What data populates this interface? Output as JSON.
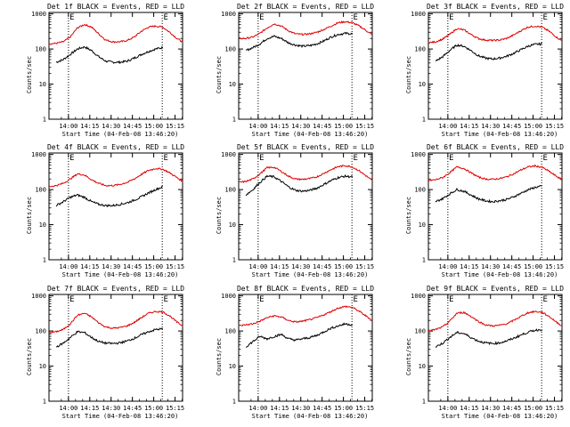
{
  "colors": {
    "events": "#000000",
    "lld": "#e00000",
    "axis": "#000000",
    "background": "#ffffff"
  },
  "chart_data": [
    {
      "type": "line",
      "title": "Det 1f BLACK = Events, RED = LLD",
      "xlabel": "Start Time (04-Feb-08 13:46:20)",
      "ylabel": "Counts/sec",
      "scale": "log",
      "ylim": [
        1,
        1100
      ],
      "xlim_minutes": [
        0,
        94
      ],
      "y_tick_labels": [
        "1",
        "10",
        "100",
        "1000"
      ],
      "x_tick_labels": [
        "14:00",
        "14:15",
        "14:30",
        "14:45",
        "15:00",
        "15:15"
      ],
      "x_tick_minutes": [
        13.7,
        28.7,
        43.7,
        58.7,
        73.7,
        88.7
      ],
      "vlines_minutes": [
        13.7,
        79.7
      ],
      "edge_labels": [
        "E",
        "E"
      ],
      "x_minutes": [
        0,
        5,
        10,
        15,
        20,
        25,
        30,
        35,
        40,
        45,
        50,
        55,
        60,
        65,
        70,
        75,
        80,
        85,
        90,
        94
      ],
      "series": [
        {
          "name": "Events",
          "color": "black",
          "start": 5,
          "end": 80,
          "values": [
            40,
            42,
            50,
            70,
            100,
            115,
            90,
            60,
            45,
            42,
            42,
            45,
            55,
            70,
            85,
            100,
            110,
            120,
            115,
            110
          ]
        },
        {
          "name": "LLD",
          "color": "red",
          "start": 0,
          "end": 94,
          "values": [
            140,
            145,
            160,
            220,
            400,
            500,
            420,
            270,
            180,
            160,
            160,
            175,
            220,
            320,
            420,
            450,
            420,
            300,
            200,
            160
          ]
        }
      ]
    },
    {
      "type": "line",
      "title": "Det 2f BLACK = Events, RED = LLD",
      "xlabel": "Start Time (04-Feb-08 13:46:20)",
      "ylabel": "Counts/sec",
      "scale": "log",
      "ylim": [
        1,
        1100
      ],
      "xlim_minutes": [
        0,
        94
      ],
      "y_tick_labels": [
        "1",
        "10",
        "100",
        "1000"
      ],
      "x_tick_labels": [
        "14:00",
        "14:15",
        "14:30",
        "14:45",
        "15:00",
        "15:15"
      ],
      "x_tick_minutes": [
        13.7,
        28.7,
        43.7,
        58.7,
        73.7,
        88.7
      ],
      "vlines_minutes": [
        13.7,
        79.7
      ],
      "edge_labels": [
        "E",
        "E"
      ],
      "x_minutes": [
        0,
        5,
        10,
        15,
        20,
        25,
        30,
        35,
        40,
        45,
        50,
        55,
        60,
        65,
        70,
        75,
        80,
        85,
        90,
        94
      ],
      "series": [
        {
          "name": "Events",
          "color": "black",
          "start": 5,
          "end": 80,
          "values": [
            80,
            90,
            110,
            140,
            200,
            230,
            200,
            150,
            130,
            120,
            125,
            140,
            170,
            220,
            260,
            280,
            270,
            250,
            220,
            200
          ]
        },
        {
          "name": "LLD",
          "color": "red",
          "start": 0,
          "end": 94,
          "values": [
            200,
            200,
            220,
            280,
            400,
            520,
            450,
            330,
            270,
            260,
            270,
            300,
            360,
            450,
            560,
            600,
            560,
            450,
            330,
            250
          ]
        }
      ]
    },
    {
      "type": "line",
      "title": "Det 3f BLACK = Events, RED = LLD",
      "xlabel": "Start Time (04-Feb-08 13:46:20)",
      "ylabel": "Counts/sec",
      "scale": "log",
      "ylim": [
        1,
        1100
      ],
      "xlim_minutes": [
        0,
        94
      ],
      "y_tick_labels": [
        "1",
        "10",
        "100",
        "1000"
      ],
      "x_tick_labels": [
        "14:00",
        "14:15",
        "14:30",
        "14:45",
        "15:00",
        "15:15"
      ],
      "x_tick_minutes": [
        13.7,
        28.7,
        43.7,
        58.7,
        73.7,
        88.7
      ],
      "vlines_minutes": [
        13.7,
        79.7
      ],
      "edge_labels": [
        "E",
        "E"
      ],
      "x_minutes": [
        0,
        5,
        10,
        15,
        20,
        25,
        30,
        35,
        40,
        45,
        50,
        55,
        60,
        65,
        70,
        75,
        80,
        85,
        90,
        94
      ],
      "series": [
        {
          "name": "Events",
          "color": "black",
          "start": 5,
          "end": 80,
          "values": [
            40,
            45,
            60,
            90,
            130,
            120,
            90,
            65,
            55,
            52,
            55,
            62,
            75,
            95,
            120,
            135,
            140,
            130,
            120,
            110
          ]
        },
        {
          "name": "LLD",
          "color": "red",
          "start": 0,
          "end": 94,
          "values": [
            150,
            160,
            190,
            260,
            380,
            350,
            260,
            200,
            180,
            175,
            180,
            200,
            250,
            330,
            420,
            450,
            420,
            320,
            220,
            170
          ]
        }
      ]
    },
    {
      "type": "line",
      "title": "Det 4f BLACK = Events, RED = LLD",
      "xlabel": "Start Time (04-Feb-08 13:46:20)",
      "ylabel": "Counts/sec",
      "scale": "log",
      "ylim": [
        1,
        1100
      ],
      "xlim_minutes": [
        0,
        94
      ],
      "y_tick_labels": [
        "1",
        "10",
        "100",
        "1000"
      ],
      "x_tick_labels": [
        "14:00",
        "14:15",
        "14:30",
        "14:45",
        "15:00",
        "15:15"
      ],
      "x_tick_minutes": [
        13.7,
        28.7,
        43.7,
        58.7,
        73.7,
        88.7
      ],
      "vlines_minutes": [
        13.7,
        79.7
      ],
      "edge_labels": [
        "E",
        "E"
      ],
      "x_minutes": [
        0,
        5,
        10,
        15,
        20,
        25,
        30,
        35,
        40,
        45,
        50,
        55,
        60,
        65,
        70,
        75,
        80,
        85,
        90,
        94
      ],
      "series": [
        {
          "name": "Events",
          "color": "black",
          "start": 5,
          "end": 80,
          "values": [
            30,
            35,
            45,
            60,
            70,
            60,
            45,
            38,
            35,
            35,
            38,
            42,
            50,
            62,
            80,
            100,
            120,
            130,
            125,
            120
          ]
        },
        {
          "name": "LLD",
          "color": "red",
          "start": 0,
          "end": 94,
          "values": [
            120,
            130,
            150,
            200,
            280,
            260,
            190,
            150,
            130,
            130,
            140,
            160,
            200,
            270,
            350,
            400,
            380,
            300,
            220,
            170
          ]
        }
      ]
    },
    {
      "type": "line",
      "title": "Det 5f BLACK = Events, RED = LLD",
      "xlabel": "Start Time (04-Feb-08 13:46:20)",
      "ylabel": "Counts/sec",
      "scale": "log",
      "ylim": [
        1,
        1100
      ],
      "xlim_minutes": [
        0,
        94
      ],
      "y_tick_labels": [
        "1",
        "10",
        "100",
        "1000"
      ],
      "x_tick_labels": [
        "14:00",
        "14:15",
        "14:30",
        "14:45",
        "15:00",
        "15:15"
      ],
      "x_tick_minutes": [
        13.7,
        28.7,
        43.7,
        58.7,
        73.7,
        88.7
      ],
      "vlines_minutes": [
        13.7,
        79.7
      ],
      "edge_labels": [
        "E",
        "E"
      ],
      "x_minutes": [
        0,
        5,
        10,
        15,
        20,
        25,
        30,
        35,
        40,
        45,
        50,
        55,
        60,
        65,
        70,
        75,
        80,
        85,
        90,
        94
      ],
      "series": [
        {
          "name": "Events",
          "color": "black",
          "start": 5,
          "end": 80,
          "values": [
            60,
            70,
            100,
            160,
            240,
            230,
            170,
            120,
            95,
            90,
            95,
            110,
            140,
            180,
            220,
            240,
            230,
            200,
            170,
            150
          ]
        },
        {
          "name": "LLD",
          "color": "red",
          "start": 0,
          "end": 94,
          "values": [
            160,
            170,
            200,
            280,
            420,
            430,
            330,
            240,
            200,
            195,
            205,
            230,
            290,
            370,
            450,
            480,
            440,
            340,
            240,
            180
          ]
        }
      ]
    },
    {
      "type": "line",
      "title": "Det 6f BLACK = Events, RED = LLD",
      "xlabel": "Start Time (04-Feb-08 13:46:20)",
      "ylabel": "Counts/sec",
      "scale": "log",
      "ylim": [
        1,
        1100
      ],
      "xlim_minutes": [
        0,
        94
      ],
      "y_tick_labels": [
        "1",
        "10",
        "100",
        "1000"
      ],
      "x_tick_labels": [
        "14:00",
        "14:15",
        "14:30",
        "14:45",
        "15:00",
        "15:15"
      ],
      "x_tick_minutes": [
        13.7,
        28.7,
        43.7,
        58.7,
        73.7,
        88.7
      ],
      "vlines_minutes": [
        13.7,
        79.7
      ],
      "edge_labels": [
        "E",
        "E"
      ],
      "x_minutes": [
        0,
        5,
        10,
        15,
        20,
        25,
        30,
        35,
        40,
        45,
        50,
        55,
        60,
        65,
        70,
        75,
        80,
        85,
        90,
        94
      ],
      "series": [
        {
          "name": "Events",
          "color": "black",
          "start": 5,
          "end": 80,
          "values": [
            40,
            45,
            55,
            75,
            100,
            90,
            70,
            55,
            48,
            45,
            48,
            52,
            62,
            78,
            98,
            115,
            125,
            120,
            110,
            100
          ]
        },
        {
          "name": "LLD",
          "color": "red",
          "start": 0,
          "end": 94,
          "values": [
            180,
            190,
            220,
            300,
            440,
            400,
            300,
            230,
            200,
            195,
            205,
            230,
            280,
            360,
            440,
            470,
            430,
            330,
            240,
            190
          ]
        }
      ]
    },
    {
      "type": "line",
      "title": "Det 7f BLACK = Events, RED = LLD",
      "xlabel": "Start Time (04-Feb-08 13:46:20)",
      "ylabel": "Counts/sec",
      "scale": "log",
      "ylim": [
        1,
        1100
      ],
      "xlim_minutes": [
        0,
        94
      ],
      "y_tick_labels": [
        "1",
        "10",
        "100",
        "1000"
      ],
      "x_tick_labels": [
        "14:00",
        "14:15",
        "14:30",
        "14:45",
        "15:00",
        "15:15"
      ],
      "x_tick_minutes": [
        13.7,
        28.7,
        43.7,
        58.7,
        73.7,
        88.7
      ],
      "vlines_minutes": [
        13.7,
        79.7
      ],
      "edge_labels": [
        "E",
        "E"
      ],
      "x_minutes": [
        0,
        5,
        10,
        15,
        20,
        25,
        30,
        35,
        40,
        45,
        50,
        55,
        60,
        65,
        70,
        75,
        80,
        85,
        90,
        94
      ],
      "series": [
        {
          "name": "Events",
          "color": "black",
          "start": 5,
          "end": 80,
          "values": [
            30,
            35,
            45,
            65,
            95,
            90,
            65,
            50,
            45,
            44,
            46,
            52,
            62,
            78,
            95,
            110,
            115,
            110,
            100,
            90
          ]
        },
        {
          "name": "LLD",
          "color": "red",
          "start": 0,
          "end": 94,
          "values": [
            90,
            95,
            110,
            160,
            280,
            320,
            250,
            170,
            130,
            120,
            125,
            140,
            175,
            240,
            320,
            360,
            350,
            270,
            180,
            140
          ]
        }
      ]
    },
    {
      "type": "line",
      "title": "Det 8f BLACK = Events, RED = LLD",
      "xlabel": "Start Time (04-Feb-08 13:46:20)",
      "ylabel": "Counts/sec",
      "scale": "log",
      "ylim": [
        1,
        1100
      ],
      "xlim_minutes": [
        0,
        94
      ],
      "y_tick_labels": [
        "1",
        "10",
        "100",
        "1000"
      ],
      "x_tick_labels": [
        "14:00",
        "14:15",
        "14:30",
        "14:45",
        "15:00",
        "15:15"
      ],
      "x_tick_minutes": [
        13.7,
        28.7,
        43.7,
        58.7,
        73.7,
        88.7
      ],
      "vlines_minutes": [
        13.7,
        79.7
      ],
      "edge_labels": [
        "E",
        "E"
      ],
      "x_minutes": [
        0,
        5,
        10,
        15,
        20,
        25,
        30,
        35,
        40,
        45,
        50,
        55,
        60,
        65,
        70,
        75,
        80,
        85,
        90,
        94
      ],
      "series": [
        {
          "name": "Events",
          "color": "black",
          "start": 5,
          "end": 80,
          "values": [
            30,
            35,
            50,
            70,
            60,
            70,
            80,
            60,
            55,
            60,
            65,
            75,
            95,
            120,
            140,
            160,
            150,
            140,
            120,
            110
          ]
        },
        {
          "name": "LLD",
          "color": "red",
          "start": 0,
          "end": 94,
          "values": [
            140,
            150,
            160,
            190,
            240,
            270,
            250,
            200,
            180,
            190,
            210,
            240,
            290,
            360,
            450,
            500,
            470,
            360,
            260,
            200
          ]
        }
      ]
    },
    {
      "type": "line",
      "title": "Det 9f BLACK = Events, RED = LLD",
      "xlabel": "Start Time (04-Feb-08 13:46:20)",
      "ylabel": "Counts/sec",
      "scale": "log",
      "ylim": [
        1,
        1100
      ],
      "xlim_minutes": [
        0,
        94
      ],
      "y_tick_labels": [
        "1",
        "10",
        "100",
        "1000"
      ],
      "x_tick_labels": [
        "14:00",
        "14:15",
        "14:30",
        "14:45",
        "15:00",
        "15:15"
      ],
      "x_tick_minutes": [
        13.7,
        28.7,
        43.7,
        58.7,
        73.7,
        88.7
      ],
      "vlines_minutes": [
        13.7,
        79.7
      ],
      "edge_labels": [
        "E",
        "E"
      ],
      "x_minutes": [
        0,
        5,
        10,
        15,
        20,
        25,
        30,
        35,
        40,
        45,
        50,
        55,
        60,
        65,
        70,
        75,
        80,
        85,
        90,
        94
      ],
      "series": [
        {
          "name": "Events",
          "color": "black",
          "start": 5,
          "end": 80,
          "values": [
            30,
            35,
            45,
            65,
            90,
            85,
            65,
            52,
            46,
            44,
            46,
            52,
            62,
            76,
            92,
            105,
            110,
            105,
            95,
            90
          ]
        },
        {
          "name": "LLD",
          "color": "red",
          "start": 0,
          "end": 94,
          "values": [
            100,
            110,
            130,
            190,
            320,
            340,
            260,
            190,
            150,
            140,
            145,
            160,
            200,
            260,
            330,
            360,
            340,
            260,
            180,
            140
          ]
        }
      ]
    }
  ]
}
